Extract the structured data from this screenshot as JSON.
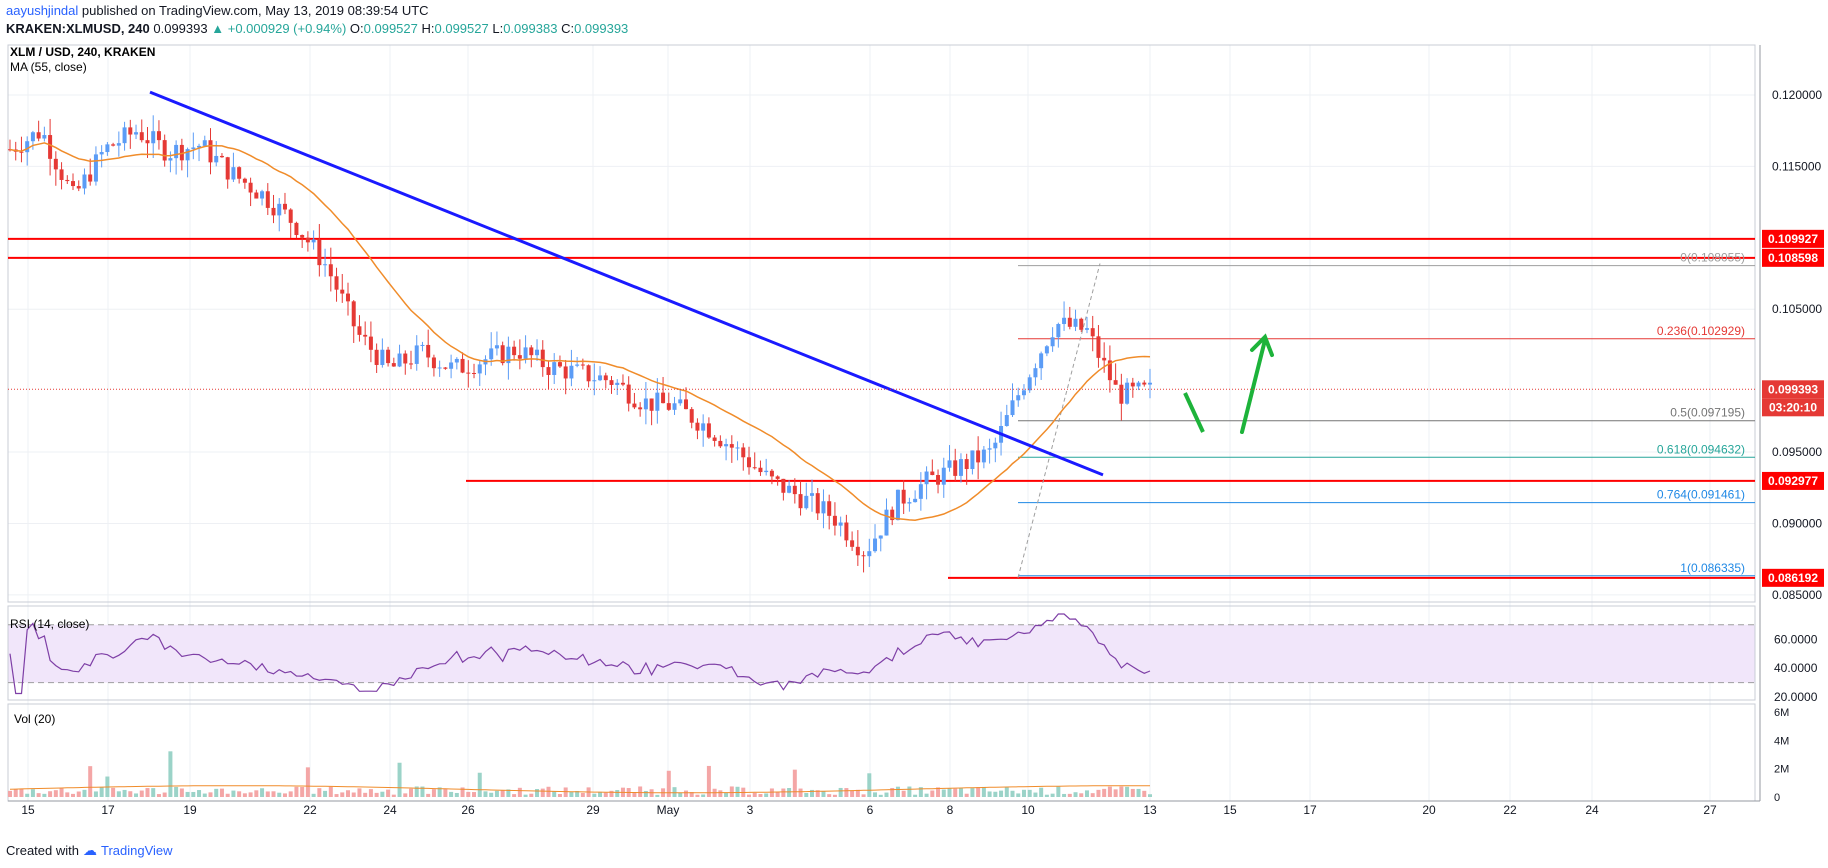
{
  "header": {
    "user": "aayushjindal",
    "published": "published on TradingView.com, May 13, 2019 08:39:54 UTC",
    "symbol": "KRAKEN:XLMUSD, 240",
    "last": "0.099393",
    "change": "+0.000929 (+0.94%)",
    "open_label": "O:",
    "open": "0.099527",
    "high_label": "H:",
    "high": "0.099527",
    "low_label": "L:",
    "low": "0.099383",
    "close_label": "C:",
    "close": "0.099393"
  },
  "footer": {
    "created_with": "Created with",
    "brand": "TradingView"
  },
  "colors": {
    "up": "#26a69a",
    "down": "#ef5350",
    "upCandle": "#5b9cf6",
    "downCandle": "#e53935",
    "trendline": "#1a1aff",
    "ma": "#f08c2a",
    "hline": "#ff0000",
    "arrow": "#1db33a",
    "rsi": "#7e3fa6",
    "rsiBand": "#f1e6fa"
  },
  "chart_data": [
    {
      "type": "candlestick",
      "title": "XLM / USD, 240, KRAKEN",
      "indicator": "MA (55, close)",
      "x_ticks": [
        "15",
        "17",
        "19",
        "22",
        "24",
        "26",
        "29",
        "May",
        "3",
        "6",
        "8",
        "10",
        "13",
        "15",
        "17",
        "20",
        "22",
        "24",
        "27"
      ],
      "y_ticks": [
        "0.120000",
        "0.115000",
        "0.105000",
        "0.095000",
        "0.090000",
        "0.085000"
      ],
      "ylim": [
        0.0845,
        0.1235
      ],
      "last_price_label": "0.099393",
      "countdown": "03:20:10",
      "price_path": [
        [
          15,
          0.1162
        ],
        [
          16,
          0.1175
        ],
        [
          17,
          0.1128
        ],
        [
          18,
          0.1162
        ],
        [
          19,
          0.1175
        ],
        [
          20,
          0.116
        ],
        [
          21,
          0.1165
        ],
        [
          22,
          0.1145
        ],
        [
          23,
          0.113
        ],
        [
          24,
          0.111
        ],
        [
          25,
          0.108
        ],
        [
          26,
          0.1032
        ],
        [
          27,
          0.1008
        ],
        [
          28,
          0.102
        ],
        [
          29,
          0.1008
        ],
        [
          30,
          0.1015
        ],
        [
          31,
          0.1022
        ],
        [
          32,
          0.101
        ],
        [
          33,
          0.1005
        ],
        [
          34,
          0.1
        ],
        [
          35,
          0.0985
        ],
        [
          36,
          0.0982
        ],
        [
          37,
          0.0968
        ],
        [
          38,
          0.095
        ],
        [
          39,
          0.093
        ],
        [
          40,
          0.0918
        ],
        [
          41,
          0.0905
        ],
        [
          42,
          0.088
        ],
        [
          43,
          0.0915
        ],
        [
          44,
          0.093
        ],
        [
          45,
          0.094
        ],
        [
          46,
          0.095
        ],
        [
          47,
          0.0998
        ],
        [
          48,
          0.104
        ],
        [
          49,
          0.1035
        ],
        [
          50,
          0.099
        ],
        [
          51,
          0.0993
        ]
      ],
      "horizontal_levels": [
        {
          "price": 0.109927,
          "label": "0.109927"
        },
        {
          "price": 0.108598,
          "label": "0.108598"
        },
        {
          "price": 0.092977,
          "label": "0.092977"
        },
        {
          "price": 0.086192,
          "label": "0.086192"
        }
      ],
      "fibonacci": [
        {
          "level": "0",
          "text": "0(0.108055)",
          "price": 0.108055,
          "color": "#9e9e9e"
        },
        {
          "level": "0.236",
          "text": "0.236(0.102929)",
          "price": 0.102929,
          "color": "#e53935"
        },
        {
          "level": "0.5",
          "text": "0.5(0.097195)",
          "price": 0.097195,
          "color": "#757575"
        },
        {
          "level": "0.618",
          "text": "0.618(0.094632)",
          "price": 0.094632,
          "color": "#26a69a"
        },
        {
          "level": "0.764",
          "text": "0.764(0.091461)",
          "price": 0.091461,
          "color": "#1e88e5"
        },
        {
          "level": "1",
          "text": "1(0.086335)",
          "price": 0.086335,
          "color": "#1e88e5"
        }
      ]
    },
    {
      "type": "line",
      "title": "RSI (14, close)",
      "y_ticks": [
        "60.0000",
        "40.0000",
        "20.0000"
      ],
      "ylim": [
        18,
        83
      ]
    },
    {
      "type": "bar",
      "title": "Vol (20)",
      "y_ticks": [
        "6M",
        "4M",
        "2M",
        "0"
      ],
      "ylim": [
        0,
        6
      ]
    }
  ]
}
